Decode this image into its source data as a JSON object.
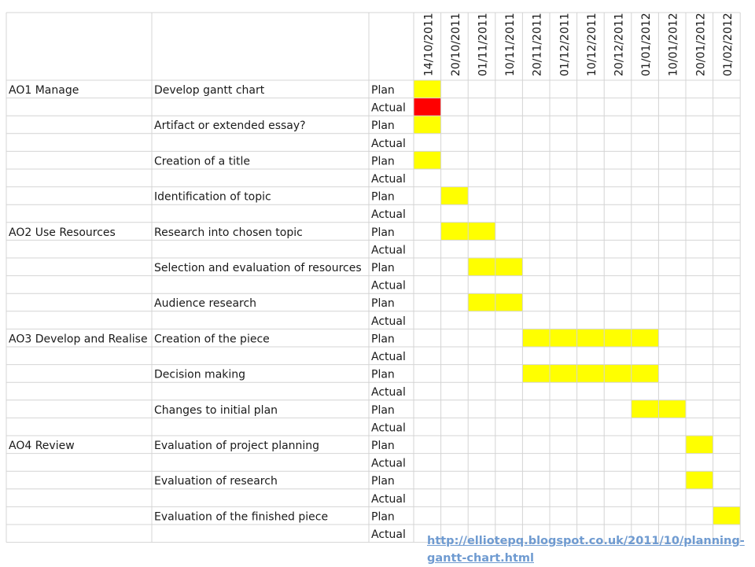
{
  "chart_data": {
    "type": "gantt",
    "dates": [
      "14/10/2011",
      "20/10/2011",
      "01/11/2011",
      "10/11/2011",
      "20/11/2011",
      "01/12/2011",
      "10/12/2011",
      "20/12/2011",
      "01/01/2012",
      "10/01/2012",
      "20/01/2012",
      "01/02/2012"
    ],
    "rows": [
      {
        "section": "AO1 Manage",
        "task": "Develop gantt chart",
        "kind": "Plan",
        "start": 0,
        "end": 0,
        "color": "#ffff00"
      },
      {
        "section": "",
        "task": "",
        "kind": "Actual",
        "start": 0,
        "end": 0,
        "color": "#ff0000"
      },
      {
        "section": "",
        "task": "Artifact or extended essay?",
        "kind": "Plan",
        "start": 0,
        "end": 0,
        "color": "#ffff00"
      },
      {
        "section": "",
        "task": "",
        "kind": "Actual",
        "start": null,
        "end": null,
        "color": null
      },
      {
        "section": "",
        "task": "Creation of a title",
        "kind": "Plan",
        "start": 0,
        "end": 0,
        "color": "#ffff00"
      },
      {
        "section": "",
        "task": "",
        "kind": "Actual",
        "start": null,
        "end": null,
        "color": null
      },
      {
        "section": "",
        "task": "Identification of topic",
        "kind": "Plan",
        "start": 1,
        "end": 1,
        "color": "#ffff00"
      },
      {
        "section": "",
        "task": "",
        "kind": "Actual",
        "start": null,
        "end": null,
        "color": null
      },
      {
        "section": "AO2 Use Resources",
        "task": "Research into chosen topic",
        "kind": "Plan",
        "start": 1,
        "end": 2,
        "color": "#ffff00"
      },
      {
        "section": "",
        "task": "",
        "kind": "Actual",
        "start": null,
        "end": null,
        "color": null
      },
      {
        "section": "",
        "task": "Selection and evaluation of resources",
        "kind": "Plan",
        "start": 2,
        "end": 3,
        "color": "#ffff00"
      },
      {
        "section": "",
        "task": "",
        "kind": "Actual",
        "start": null,
        "end": null,
        "color": null
      },
      {
        "section": "",
        "task": "Audience research",
        "kind": "Plan",
        "start": 2,
        "end": 3,
        "color": "#ffff00"
      },
      {
        "section": "",
        "task": "",
        "kind": "Actual",
        "start": null,
        "end": null,
        "color": null
      },
      {
        "section": "AO3 Develop and Realise",
        "task": "Creation of the piece",
        "kind": "Plan",
        "start": 4,
        "end": 8,
        "color": "#ffff00"
      },
      {
        "section": "",
        "task": "",
        "kind": "Actual",
        "start": null,
        "end": null,
        "color": null
      },
      {
        "section": "",
        "task": "Decision making",
        "kind": "Plan",
        "start": 4,
        "end": 8,
        "color": "#ffff00"
      },
      {
        "section": "",
        "task": "",
        "kind": "Actual",
        "start": null,
        "end": null,
        "color": null
      },
      {
        "section": "",
        "task": "Changes to initial plan",
        "kind": "Plan",
        "start": 8,
        "end": 9,
        "color": "#ffff00"
      },
      {
        "section": "",
        "task": "",
        "kind": "Actual",
        "start": null,
        "end": null,
        "color": null
      },
      {
        "section": "AO4 Review",
        "task": "Evaluation of project planning",
        "kind": "Plan",
        "start": 10,
        "end": 10,
        "color": "#ffff00"
      },
      {
        "section": "",
        "task": "",
        "kind": "Actual",
        "start": null,
        "end": null,
        "color": null
      },
      {
        "section": "",
        "task": "Evaluation of research",
        "kind": "Plan",
        "start": 10,
        "end": 10,
        "color": "#ffff00"
      },
      {
        "section": "",
        "task": "",
        "kind": "Actual",
        "start": null,
        "end": null,
        "color": null
      },
      {
        "section": "",
        "task": "Evaluation of the finished piece",
        "kind": "Plan",
        "start": 11,
        "end": 11,
        "color": "#ffff00"
      },
      {
        "section": "",
        "task": "",
        "kind": "Actual",
        "start": null,
        "end": null,
        "color": null
      }
    ]
  },
  "source_url": "http://elliotepq.blogspot.co.uk/2011/10/planning-gantt-chart.html",
  "colors": {
    "grid": "#d4d4d4",
    "text": "#1a1a1a",
    "link": "#6f9bd1"
  }
}
